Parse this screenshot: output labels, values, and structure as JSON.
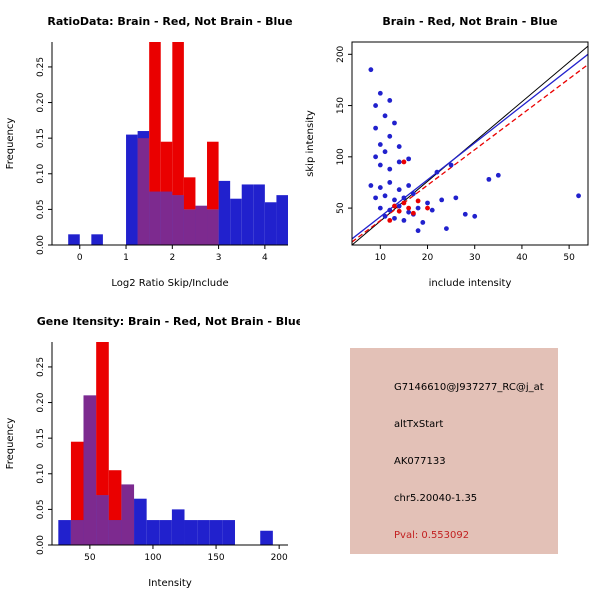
{
  "colors": {
    "blue": "#2121cd",
    "red": "#ea0000",
    "overlap": "#7d2a8f",
    "black": "#000000",
    "info_bg": "#e3c1b7",
    "pval": "#c22121"
  },
  "info": {
    "lines": [
      "G7146610@J937277_RC@j_at",
      "altTxStart",
      "AK077133",
      "chr5.20040-1.35"
    ],
    "pval": "Pval: 0.553092"
  },
  "chart_data": [
    {
      "type": "histogram",
      "title": "RatioData: Brain - Red, Not Brain - Blue",
      "xlabel": "Log2 Ratio Skip/Include",
      "ylabel": "Frequency",
      "xlim": [
        -0.6,
        4.5
      ],
      "ylim": [
        0,
        0.285
      ],
      "xticks": [
        0,
        1,
        2,
        3,
        4
      ],
      "xtick_labels": [
        "0",
        "1",
        "2",
        "3",
        "4"
      ],
      "yticks": [
        0,
        0.05,
        0.1,
        0.15,
        0.2,
        0.25
      ],
      "ytick_labels": [
        "0.00",
        "0.05",
        "0.10",
        "0.15",
        "0.20",
        "0.25"
      ],
      "bin_width": 0.25,
      "series": [
        {
          "name": "Not Brain",
          "color_key": "blue",
          "bins": [
            [
              -0.25,
              0.015
            ],
            [
              0.25,
              0.015
            ],
            [
              1.0,
              0.155
            ],
            [
              1.25,
              0.16
            ],
            [
              1.5,
              0.075
            ],
            [
              1.75,
              0.075
            ],
            [
              2.0,
              0.07
            ],
            [
              2.25,
              0.05
            ],
            [
              2.5,
              0.055
            ],
            [
              2.75,
              0.05
            ],
            [
              3.0,
              0.09
            ],
            [
              3.25,
              0.065
            ],
            [
              3.5,
              0.085
            ],
            [
              3.75,
              0.085
            ],
            [
              4.0,
              0.06
            ],
            [
              4.25,
              0.07
            ]
          ]
        },
        {
          "name": "Brain",
          "color_key": "red",
          "bins": [
            [
              1.25,
              0.15
            ],
            [
              1.5,
              0.285
            ],
            [
              1.75,
              0.145
            ],
            [
              2.0,
              0.285
            ],
            [
              2.25,
              0.095
            ],
            [
              2.5,
              0.055
            ],
            [
              2.75,
              0.145
            ]
          ]
        }
      ]
    },
    {
      "type": "scatter",
      "title": "Brain - Red, Not Brain - Blue",
      "xlabel": "include intensity",
      "ylabel": "skip intensity",
      "xlim": [
        4,
        54
      ],
      "ylim": [
        14,
        212
      ],
      "xticks": [
        10,
        20,
        30,
        40,
        50
      ],
      "xtick_labels": [
        "10",
        "20",
        "30",
        "40",
        "50"
      ],
      "yticks": [
        50,
        100,
        150,
        200
      ],
      "ytick_labels": [
        "50",
        "100",
        "150",
        "200"
      ],
      "series": [
        {
          "name": "Not Brain",
          "color_key": "blue",
          "points": [
            [
              8,
              185
            ],
            [
              9,
              150
            ],
            [
              10,
              162
            ],
            [
              9,
              128
            ],
            [
              11,
              140
            ],
            [
              12,
              155
            ],
            [
              10,
              112
            ],
            [
              12,
              120
            ],
            [
              13,
              133
            ],
            [
              9,
              100
            ],
            [
              11,
              105
            ],
            [
              14,
              110
            ],
            [
              10,
              92
            ],
            [
              12,
              88
            ],
            [
              14,
              95
            ],
            [
              16,
              98
            ],
            [
              8,
              72
            ],
            [
              10,
              70
            ],
            [
              12,
              75
            ],
            [
              14,
              68
            ],
            [
              16,
              72
            ],
            [
              9,
              60
            ],
            [
              11,
              62
            ],
            [
              13,
              58
            ],
            [
              15,
              60
            ],
            [
              17,
              64
            ],
            [
              10,
              50
            ],
            [
              12,
              48
            ],
            [
              14,
              52
            ],
            [
              16,
              46
            ],
            [
              18,
              50
            ],
            [
              20,
              55
            ],
            [
              11,
              42
            ],
            [
              13,
              40
            ],
            [
              15,
              38
            ],
            [
              17,
              44
            ],
            [
              19,
              36
            ],
            [
              21,
              48
            ],
            [
              23,
              58
            ],
            [
              22,
              85
            ],
            [
              25,
              92
            ],
            [
              26,
              60
            ],
            [
              28,
              44
            ],
            [
              30,
              42
            ],
            [
              33,
              78
            ],
            [
              35,
              82
            ],
            [
              52,
              62
            ],
            [
              24,
              30
            ],
            [
              18,
              28
            ]
          ]
        },
        {
          "name": "Brain",
          "color_key": "red",
          "points": [
            [
              13,
              52
            ],
            [
              14,
              47
            ],
            [
              15,
              55
            ],
            [
              16,
              50
            ],
            [
              17,
              45
            ],
            [
              18,
              57
            ],
            [
              20,
              50
            ],
            [
              15,
              95
            ],
            [
              12,
              38
            ]
          ]
        }
      ],
      "lines": [
        {
          "name": "identity-line",
          "color_key": "black",
          "width": 1,
          "dash": "",
          "x1": 4,
          "y1": 14,
          "x2": 54,
          "y2": 208
        },
        {
          "name": "not-brain-fit-line",
          "color_key": "blue",
          "width": 1.3,
          "dash": "",
          "x1": 4,
          "y1": 20,
          "x2": 54,
          "y2": 200
        },
        {
          "name": "brain-fit-line",
          "color_key": "red",
          "width": 1.3,
          "dash": "5,3",
          "x1": 4,
          "y1": 17,
          "x2": 54,
          "y2": 190
        }
      ]
    },
    {
      "type": "histogram",
      "title": "Gene Itensity: Brain - Red, Not Brain - Blue",
      "xlabel": "Intensity",
      "ylabel": "Frequency",
      "xlim": [
        20,
        207
      ],
      "ylim": [
        0,
        0.285
      ],
      "xticks": [
        50,
        100,
        150,
        200
      ],
      "xtick_labels": [
        "50",
        "100",
        "150",
        "200"
      ],
      "yticks": [
        0,
        0.05,
        0.1,
        0.15,
        0.2,
        0.25
      ],
      "ytick_labels": [
        "0.00",
        "0.05",
        "0.10",
        "0.15",
        "0.20",
        "0.25"
      ],
      "bin_width": 10,
      "series": [
        {
          "name": "Not Brain",
          "color_key": "blue",
          "bins": [
            [
              25,
              0.035
            ],
            [
              35,
              0.035
            ],
            [
              45,
              0.21
            ],
            [
              55,
              0.07
            ],
            [
              65,
              0.035
            ],
            [
              75,
              0.085
            ],
            [
              85,
              0.065
            ],
            [
              95,
              0.035
            ],
            [
              105,
              0.035
            ],
            [
              115,
              0.05
            ],
            [
              125,
              0.035
            ],
            [
              135,
              0.035
            ],
            [
              145,
              0.035
            ],
            [
              155,
              0.035
            ],
            [
              185,
              0.02
            ]
          ]
        },
        {
          "name": "Brain",
          "color_key": "red",
          "bins": [
            [
              35,
              0.145
            ],
            [
              45,
              0.21
            ],
            [
              55,
              0.285
            ],
            [
              65,
              0.105
            ],
            [
              75,
              0.085
            ]
          ]
        }
      ]
    }
  ]
}
